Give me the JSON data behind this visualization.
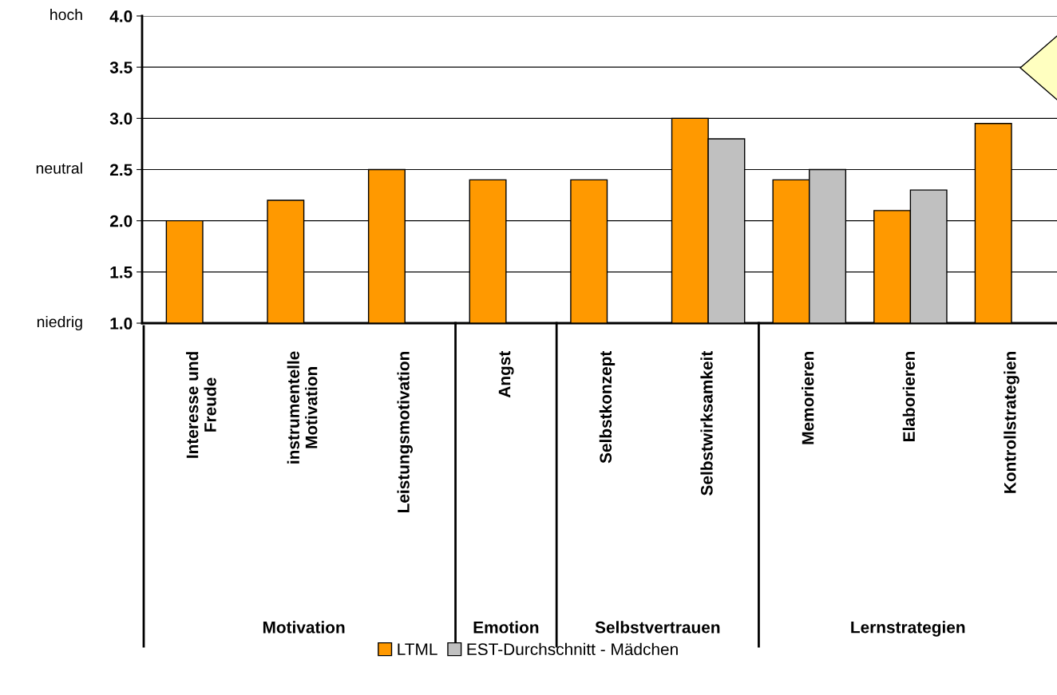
{
  "chart_data": {
    "type": "bar",
    "categories": [
      "Interesse und\nFreude",
      "instrumentelle\nMotivation",
      "Leistungsmotivation",
      "Angst",
      "Selbstkonzept",
      "Selbstwirksamkeit",
      "Memorieren",
      "Elaborieren",
      "Kontrollstrategien"
    ],
    "series": [
      {
        "name": "LTML",
        "color": "#ff9900",
        "values": [
          2.0,
          2.2,
          2.5,
          2.4,
          2.4,
          3.0,
          2.4,
          2.1,
          2.95
        ]
      },
      {
        "name": "EST-Durchschnitt - Mädchen",
        "color": "#c0c0c0",
        "values": [
          null,
          null,
          null,
          null,
          null,
          2.8,
          2.5,
          2.3,
          null
        ]
      }
    ],
    "ylim": [
      1,
      4
    ],
    "yticks": [
      {
        "value": 1,
        "label": "1.0"
      },
      {
        "value": 1.5,
        "label": "1.5"
      },
      {
        "value": 2,
        "label": "2.0"
      },
      {
        "value": 2.5,
        "label": "2.5"
      },
      {
        "value": 3,
        "label": "3.0"
      },
      {
        "value": 3.5,
        "label": "3.5"
      },
      {
        "value": 4,
        "label": "4.0"
      }
    ],
    "grid": "y",
    "legend": "bottom",
    "annotations": [
      "hoch",
      "neutral",
      "niedrig",
      "Motivation",
      "Emotion",
      "Selbstvertrauen",
      "Lernstrategien"
    ]
  }
}
